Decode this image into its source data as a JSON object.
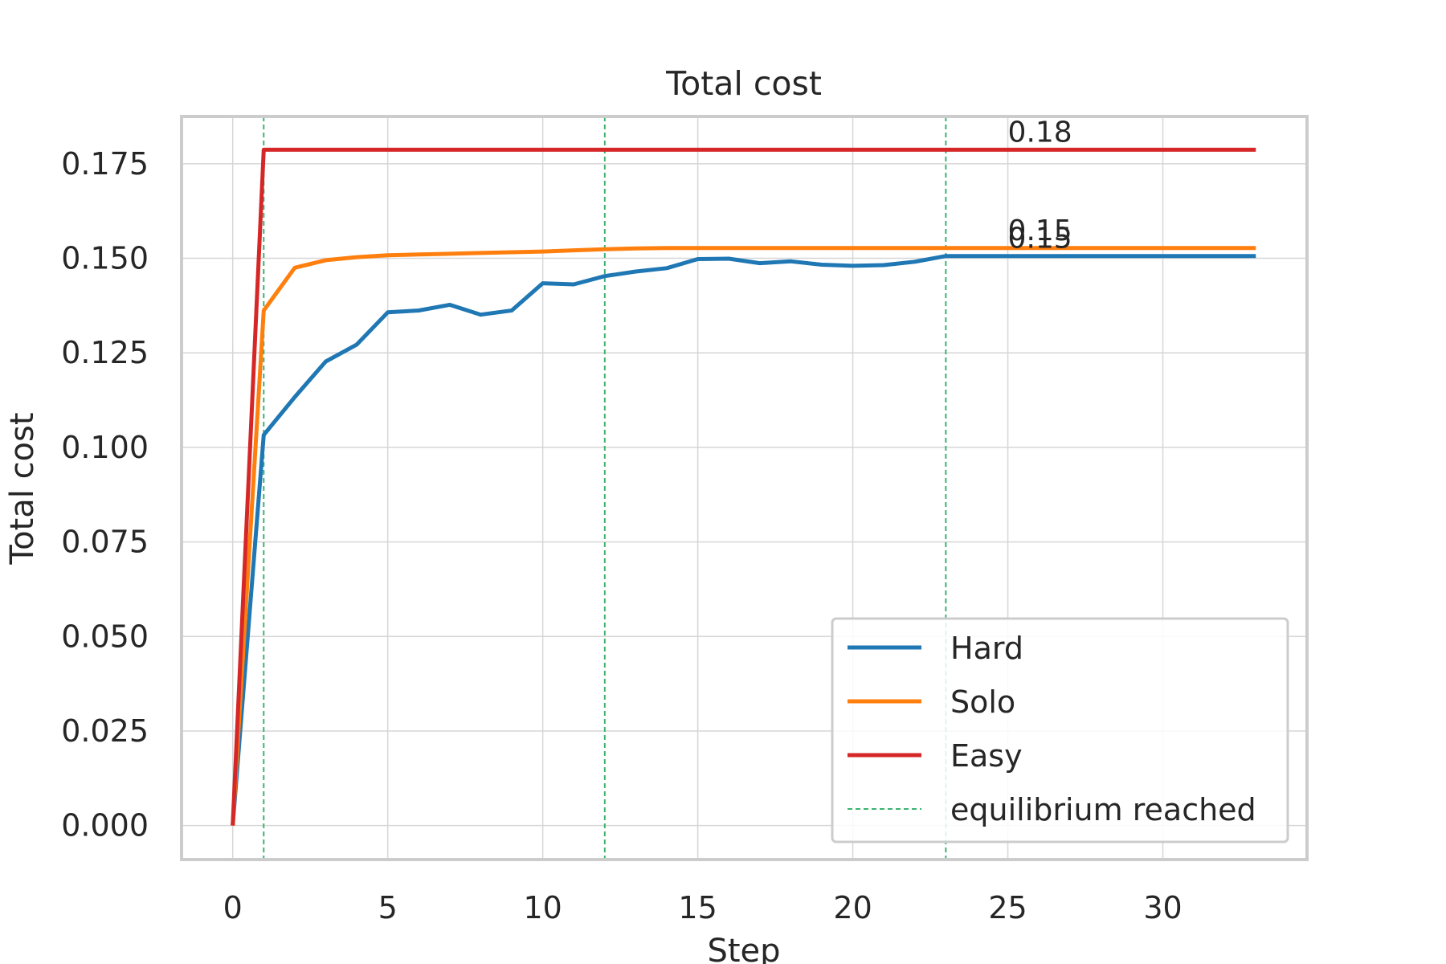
{
  "chart_data": {
    "type": "line",
    "title": "Total cost",
    "xlabel": "Step",
    "ylabel": "Total cost",
    "xlim": [
      -1.65,
      34.65
    ],
    "ylim": [
      -0.009,
      0.1875
    ],
    "xticks": [
      0,
      5,
      10,
      15,
      20,
      25,
      30
    ],
    "xtick_labels": [
      "0",
      "5",
      "10",
      "15",
      "20",
      "25",
      "30"
    ],
    "yticks": [
      0.0,
      0.025,
      0.05,
      0.075,
      0.1,
      0.125,
      0.15,
      0.175
    ],
    "ytick_labels": [
      "0.000",
      "0.025",
      "0.050",
      "0.075",
      "0.100",
      "0.125",
      "0.150",
      "0.175"
    ],
    "grid": true,
    "legend_position": "lower-right",
    "x": [
      0,
      1,
      2,
      3,
      4,
      5,
      6,
      7,
      8,
      9,
      10,
      11,
      12,
      13,
      14,
      15,
      16,
      17,
      18,
      19,
      20,
      21,
      22,
      23,
      24,
      25,
      26,
      27,
      28,
      29,
      30,
      31,
      32,
      33
    ],
    "series": [
      {
        "name": "Hard",
        "color": "#1f77b4",
        "values": [
          0.0,
          0.1033,
          0.1133,
          0.1227,
          0.1272,
          0.1357,
          0.1362,
          0.1377,
          0.1351,
          0.1362,
          0.1434,
          0.1431,
          0.1453,
          0.1465,
          0.1474,
          0.1498,
          0.1499,
          0.1487,
          0.1492,
          0.1483,
          0.148,
          0.1482,
          0.1491,
          0.1506,
          0.1506,
          0.1506,
          0.1506,
          0.1506,
          0.1506,
          0.1506,
          0.1506,
          0.1506,
          0.1506,
          0.1506
        ],
        "end_label": "0.15"
      },
      {
        "name": "Solo",
        "color": "#ff7f0e",
        "values": [
          0.0,
          0.1362,
          0.1475,
          0.1495,
          0.1503,
          0.1508,
          0.151,
          0.1512,
          0.1514,
          0.1516,
          0.1518,
          0.1521,
          0.1524,
          0.1526,
          0.1527,
          0.1527,
          0.1527,
          0.1527,
          0.1527,
          0.1527,
          0.1527,
          0.1527,
          0.1527,
          0.1527,
          0.1527,
          0.1527,
          0.1527,
          0.1527,
          0.1527,
          0.1527,
          0.1527,
          0.1527,
          0.1527,
          0.1527
        ],
        "end_label": "0.15"
      },
      {
        "name": "Easy",
        "color": "#d62728",
        "values": [
          0.0,
          0.1787,
          0.1787,
          0.1787,
          0.1787,
          0.1787,
          0.1787,
          0.1787,
          0.1787,
          0.1787,
          0.1787,
          0.1787,
          0.1787,
          0.1787,
          0.1787,
          0.1787,
          0.1787,
          0.1787,
          0.1787,
          0.1787,
          0.1787,
          0.1787,
          0.1787,
          0.1787,
          0.1787,
          0.1787,
          0.1787,
          0.1787,
          0.1787,
          0.1787,
          0.1787,
          0.1787,
          0.1787,
          0.1787
        ],
        "end_label": "0.18"
      }
    ],
    "equilibrium": {
      "name": "equilibrium reached",
      "color": "#3cb371",
      "steps": [
        1,
        12,
        23
      ]
    },
    "end_label_x": 25
  }
}
